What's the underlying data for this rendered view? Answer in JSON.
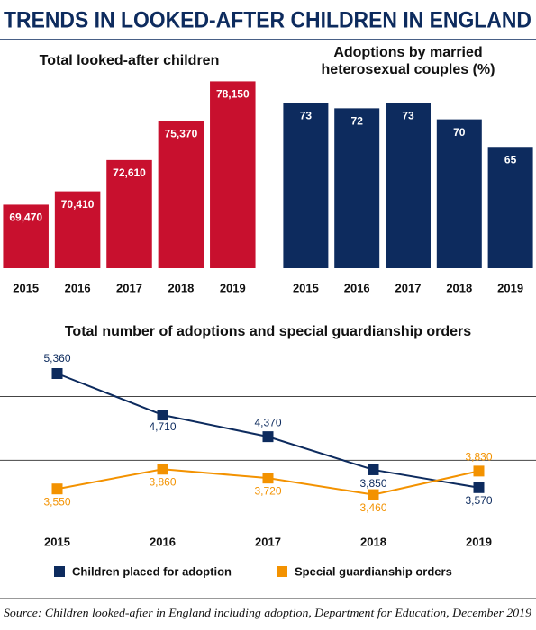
{
  "title": "TRENDS IN LOOKED-AFTER CHILDREN IN ENGLAND",
  "chart_data": [
    {
      "type": "bar",
      "title": "Total looked-after children",
      "categories": [
        "2015",
        "2016",
        "2017",
        "2018",
        "2019"
      ],
      "values": [
        69470,
        70410,
        72610,
        75370,
        78150
      ],
      "value_labels": [
        "69,470",
        "70,410",
        "72,610",
        "75,370",
        "78,150"
      ],
      "color": "#c8102e",
      "ylim": [
        65000,
        79000
      ]
    },
    {
      "type": "bar",
      "title": [
        "Adoptions by married",
        "heterosexual couples (%)"
      ],
      "categories": [
        "2015",
        "2016",
        "2017",
        "2018",
        "2019"
      ],
      "values": [
        73,
        72,
        73,
        70,
        65
      ],
      "color": "#0d2b5e",
      "ylim": [
        43,
        75
      ]
    },
    {
      "type": "line",
      "title": "Total number of adoptions and special guardianship orders",
      "categories": [
        "2015",
        "2016",
        "2017",
        "2018",
        "2019"
      ],
      "series": [
        {
          "name": "Children placed for adoption",
          "color": "#0d2b5e",
          "values": [
            5360,
            4710,
            4370,
            3850,
            3570
          ],
          "value_labels": [
            "5,360",
            "4,710",
            "4,370",
            "3,850",
            "3,570"
          ]
        },
        {
          "name": "Special guardianship orders",
          "color": "#f39200",
          "values": [
            3550,
            3860,
            3720,
            3460,
            3830
          ],
          "value_labels": [
            "3,550",
            "3,860",
            "3,720",
            "3,460",
            "3,830"
          ]
        }
      ],
      "ylim": [
        3200,
        5600
      ],
      "gridlines": [
        4000,
        5000
      ]
    }
  ],
  "source": "Source: Children looked-after in England including adoption, Department for Education, December 2019"
}
